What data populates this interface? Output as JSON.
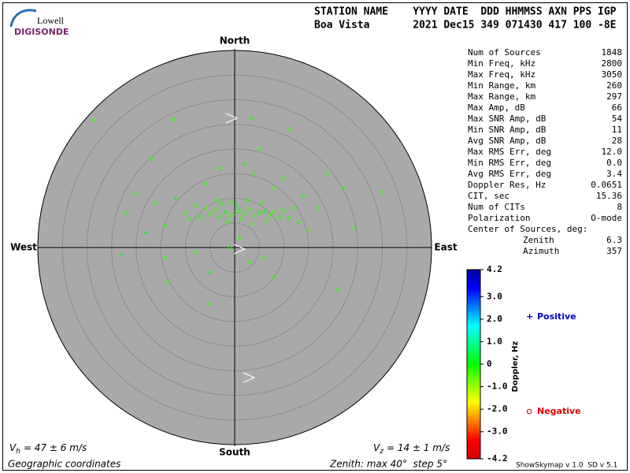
{
  "header": {
    "logo_top": "Lowell",
    "logo_bottom": "DIGISONDE",
    "columns_line": "STATION NAME    YYYY DATE  DDD HHMMSS AXN PPS IGP",
    "values_line": "Boa Vista       2021 Dec15 349 071430 417 100 -8E"
  },
  "skymap": {
    "type": "polar-scatter",
    "north": "North",
    "south": "South",
    "east": "East",
    "west": "West",
    "zenith_max": 40,
    "rings": [
      5,
      10,
      15,
      20,
      25,
      30,
      35
    ],
    "points": [
      [
        0,
        7,
        -0.3
      ],
      [
        1,
        7.5,
        -0.2
      ],
      [
        -1,
        6.5,
        -0.4
      ],
      [
        2,
        6.8,
        -0.3
      ],
      [
        -2,
        7.2,
        0.1
      ],
      [
        3,
        7.8,
        -0.5
      ],
      [
        -3,
        6.2,
        -0.2
      ],
      [
        4,
        6.5,
        -0.3
      ],
      [
        -4,
        7.6,
        -0.4
      ],
      [
        5,
        7,
        -0.2
      ],
      [
        -5,
        6.8,
        -0.3
      ],
      [
        6,
        7.4,
        0.1
      ],
      [
        -6,
        7.9,
        -0.5
      ],
      [
        7,
        6.6,
        -0.3
      ],
      [
        8,
        7.2,
        -0.4
      ],
      [
        9,
        6.1,
        -0.2
      ],
      [
        10,
        7.5,
        -0.3
      ],
      [
        -7,
        6.3,
        -0.2
      ],
      [
        0.5,
        8.5,
        0.2
      ],
      [
        1.5,
        5.8,
        -0.4
      ],
      [
        -0.5,
        9.2,
        -0.3
      ],
      [
        2.5,
        9.5,
        -0.2
      ],
      [
        -1.5,
        5.2,
        -0.3
      ],
      [
        3.5,
        4.8,
        -0.5
      ],
      [
        -2.5,
        8.8,
        -0.2
      ],
      [
        5.5,
        9,
        -0.3
      ],
      [
        6.5,
        5.5,
        -0.4
      ],
      [
        -3.5,
        9.6,
        -0.3
      ],
      [
        11,
        6,
        -0.2
      ],
      [
        12,
        8,
        -0.4
      ],
      [
        -8,
        8.5,
        -0.3
      ],
      [
        -9,
        5.8,
        -0.2
      ],
      [
        13,
        5.2,
        -0.3
      ],
      [
        -10,
        7,
        -0.4
      ],
      [
        -12,
        10,
        0.1
      ],
      [
        14,
        10.5,
        -0.2
      ],
      [
        -14,
        4.5,
        -0.3
      ],
      [
        8,
        12,
        -0.4
      ],
      [
        -6,
        13,
        -0.2
      ],
      [
        4,
        15,
        -0.3
      ],
      [
        -3,
        16,
        -0.3
      ],
      [
        2,
        17,
        -0.2
      ],
      [
        10,
        14,
        -0.5
      ],
      [
        -16,
        9,
        -0.3
      ],
      [
        17,
        8,
        -0.2
      ],
      [
        -18,
        3,
        0.1
      ],
      [
        15,
        3.5,
        -0.4
      ],
      [
        1,
        2,
        -0.3
      ],
      [
        -1,
        0,
        -0.2
      ],
      [
        3,
        -3,
        -0.3
      ],
      [
        -8,
        -1,
        -0.4
      ],
      [
        6,
        -2,
        -0.3
      ],
      [
        -5,
        -5,
        0.2
      ],
      [
        8,
        -6,
        -0.3
      ],
      [
        -14,
        -2,
        -0.3
      ],
      [
        -28.8,
        25.8,
        -0.3
      ],
      [
        3.5,
        26.2,
        -0.2
      ],
      [
        -12.5,
        26,
        -0.3
      ],
      [
        30,
        11.2,
        -0.4
      ],
      [
        -5,
        -11.4,
        -0.3
      ],
      [
        20.8,
        -8.6,
        -0.2
      ],
      [
        -13.5,
        -7,
        -0.3
      ],
      [
        -23,
        -1.5,
        0.2
      ],
      [
        22,
        12,
        -0.2
      ],
      [
        -17,
        18,
        -0.3
      ],
      [
        11,
        24,
        -0.3
      ],
      [
        5,
        20,
        -0.4
      ],
      [
        -22,
        7,
        -0.2
      ],
      [
        24,
        4,
        -0.3
      ],
      [
        19,
        15,
        -0.3
      ],
      [
        -20,
        11,
        -0.2
      ]
    ]
  },
  "stats": [
    [
      "Num of Sources",
      "1848"
    ],
    [
      "Min Freq, kHz",
      "2800"
    ],
    [
      "Max Freq, kHz",
      "3050"
    ],
    [
      "Min Range, km",
      "260"
    ],
    [
      "Max Range, km",
      "297"
    ],
    [
      "Max Amp, dB",
      "66"
    ],
    [
      "Max SNR Amp, dB",
      "54"
    ],
    [
      "Min SNR Amp, dB",
      "11"
    ],
    [
      "Avg SNR Amp, dB",
      "28"
    ],
    [
      "Max RMS Err, deg",
      "12.0"
    ],
    [
      "Min RMS Err, deg",
      "0.0"
    ],
    [
      "Avg RMS Err, deg",
      "3.4"
    ],
    [
      "Doppler Res, Hz",
      "0.0651"
    ],
    [
      "CIT, sec",
      "15.36"
    ],
    [
      "Num of CITs",
      "8"
    ],
    [
      "Polarization",
      "O-mode"
    ]
  ],
  "center": {
    "title": "Center of Sources, deg:",
    "zenith_label": "Zenith",
    "zenith": "6.3",
    "azimuth_label": "Azimuth",
    "azimuth": "357"
  },
  "colorbar": {
    "title": "Doppler, Hz",
    "lim": [
      -4.2,
      4.2
    ],
    "colors": [
      "#0000a0",
      "#0000ff",
      "#0080ff",
      "#00ffff",
      "#00ff80",
      "#00ff00",
      "#80ff00",
      "#ffff00",
      "#ff8000",
      "#ff0000",
      "#d00000"
    ],
    "ticks": [
      4.2,
      {
        "value": 3,
        "label": "3.0"
      },
      {
        "value": 2,
        "label": "2.0"
      },
      {
        "value": 1,
        "label": "1.0"
      },
      0,
      {
        "value": -1,
        "label": "-1.0"
      },
      {
        "value": -2,
        "label": "-2.0"
      },
      {
        "value": -3,
        "label": "-3.0"
      },
      -4.2
    ]
  },
  "legend": {
    "positive": "Positive",
    "negative": "Negative"
  },
  "footer": {
    "vh_symbol": "V",
    "vh_sub": "h",
    "vh_value": "= 47 ± 6 m/s",
    "vz_symbol": "V",
    "vz_sub": "z",
    "vz_value": "= 14 ± 1 m/s",
    "coords": "Geographic coordinates",
    "zenith_info": "Zenith: max 40°  step 5°",
    "version": "ShowSkymap v 1.0  SD v 5.1"
  }
}
